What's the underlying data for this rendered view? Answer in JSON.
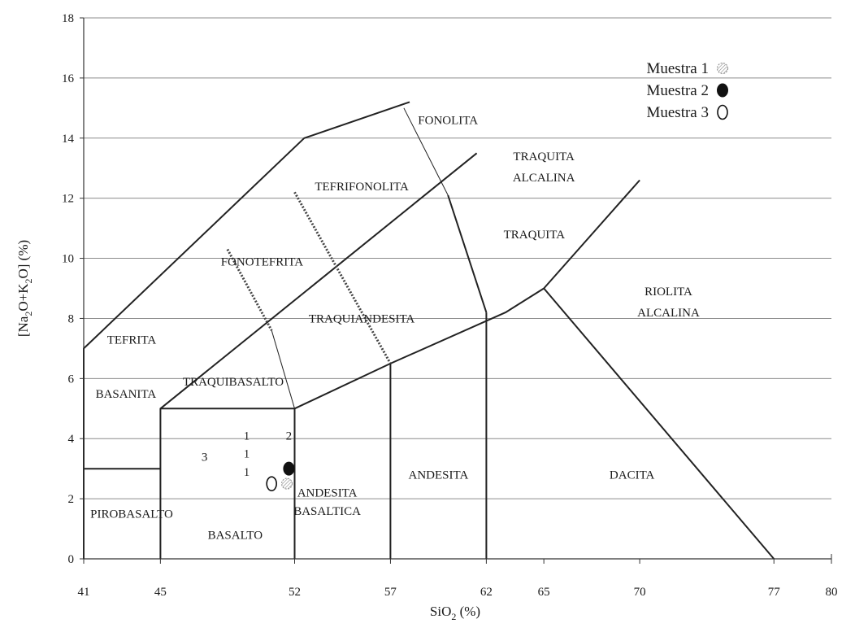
{
  "chart_data": {
    "type": "scatter",
    "title": "",
    "xlabel": {
      "prefix": "SiO",
      "sub": "2",
      "suffix": "  (%)"
    },
    "ylabel": {
      "parts": [
        [
          "[Na",
          ""
        ],
        [
          "2",
          "sub"
        ],
        [
          "O+K",
          ""
        ],
        [
          "2",
          "sub"
        ],
        [
          "O]  (%)",
          ""
        ]
      ]
    },
    "xlim": [
      41,
      80
    ],
    "ylim": [
      0,
      18
    ],
    "grid_y": true,
    "x_ticks": [
      41,
      45,
      52,
      57,
      62,
      65,
      70,
      77,
      80
    ],
    "y_ticks": [
      0,
      2,
      4,
      6,
      8,
      10,
      12,
      14,
      16,
      18
    ],
    "legend_position": "top-right",
    "series": [
      {
        "name": "Muestra 1",
        "marker": "hatched-circle",
        "color": "#9a9a9a",
        "x": [
          51.6
        ],
        "y": [
          2.5
        ]
      },
      {
        "name": "Muestra 2",
        "marker": "filled-circle",
        "color": "#111111",
        "x": [
          51.7
        ],
        "y": [
          3.0
        ]
      },
      {
        "name": "Muestra 3",
        "marker": "open-circle",
        "color": "#111111",
        "x": [
          50.8
        ],
        "y": [
          2.5
        ]
      }
    ],
    "field_boundaries": [
      {
        "style": "thick",
        "points": [
          [
            41,
            0
          ],
          [
            41,
            7
          ],
          [
            52.5,
            14
          ],
          [
            58,
            15.2
          ]
        ]
      },
      {
        "style": "thick",
        "points": [
          [
            45,
            0
          ],
          [
            45,
            5
          ],
          [
            52,
            5
          ],
          [
            52,
            0
          ]
        ]
      },
      {
        "style": "thick",
        "points": [
          [
            45,
            5
          ],
          [
            61.5,
            13.5
          ]
        ]
      },
      {
        "style": "thick",
        "points": [
          [
            52,
            5
          ],
          [
            57,
            6.5
          ],
          [
            63,
            8.2
          ],
          [
            65,
            9
          ],
          [
            70,
            12.6
          ]
        ]
      },
      {
        "style": "thick",
        "points": [
          [
            57,
            0
          ],
          [
            57,
            6.5
          ]
        ]
      },
      {
        "style": "thick",
        "points": [
          [
            62,
            0
          ],
          [
            62,
            8.2
          ]
        ]
      },
      {
        "style": "thick",
        "points": [
          [
            60,
            12.1
          ],
          [
            62,
            8.2
          ]
        ]
      },
      {
        "style": "thick",
        "points": [
          [
            65,
            9
          ],
          [
            77,
            0
          ]
        ]
      },
      {
        "style": "thick",
        "points": [
          [
            41,
            3
          ],
          [
            45,
            3
          ]
        ]
      },
      {
        "style": "thin",
        "points": [
          [
            57.7,
            15
          ],
          [
            60,
            12.1
          ]
        ]
      },
      {
        "style": "thin",
        "points": [
          [
            50.8,
            7.6
          ],
          [
            52,
            5
          ]
        ]
      },
      {
        "style": "dotted",
        "points": [
          [
            48.5,
            10.3
          ],
          [
            50.8,
            7.6
          ]
        ]
      },
      {
        "style": "dotted",
        "points": [
          [
            52,
            12.2
          ],
          [
            57,
            6.5
          ]
        ]
      }
    ],
    "field_labels": [
      {
        "text": "FONOLITA",
        "x": 60,
        "y": 14.6
      },
      {
        "text": "TRAQUITA",
        "x": 65,
        "y": 13.4
      },
      {
        "text": "ALCALINA",
        "x": 65,
        "y": 12.7
      },
      {
        "text": "TEFRIFONOLITA",
        "x": 55.5,
        "y": 12.4
      },
      {
        "text": "TRAQUITA",
        "x": 64.5,
        "y": 10.8
      },
      {
        "text": "FONOTEFRITA",
        "x": 50.3,
        "y": 9.9
      },
      {
        "text": "RIOLITA",
        "x": 71.5,
        "y": 8.9
      },
      {
        "text": "ALCALINA",
        "x": 71.5,
        "y": 8.2
      },
      {
        "text": "TRAQUIANDESITA",
        "x": 55.5,
        "y": 8.0
      },
      {
        "text": "TEFRITA",
        "x": 43.5,
        "y": 7.3
      },
      {
        "text": "TRAQUIBASALTO",
        "x": 48.8,
        "y": 5.9
      },
      {
        "text": "BASANITA",
        "x": 43.2,
        "y": 5.5
      },
      {
        "text": "1",
        "x": 49.5,
        "y": 4.1
      },
      {
        "text": "2",
        "x": 51.7,
        "y": 4.1
      },
      {
        "text": "3",
        "x": 47.3,
        "y": 3.4
      },
      {
        "text": "1",
        "x": 49.5,
        "y": 3.5
      },
      {
        "text": "1",
        "x": 49.5,
        "y": 2.9
      },
      {
        "text": "ANDESITA",
        "x": 59.5,
        "y": 2.8
      },
      {
        "text": "DACITA",
        "x": 69.6,
        "y": 2.8
      },
      {
        "text": "ANDESITA",
        "x": 53.7,
        "y": 2.2
      },
      {
        "text": "BASALTICA",
        "x": 53.7,
        "y": 1.6
      },
      {
        "text": "PIROBASALTO",
        "x": 43.5,
        "y": 1.5
      },
      {
        "text": "BASALTO",
        "x": 48.9,
        "y": 0.8
      }
    ]
  }
}
